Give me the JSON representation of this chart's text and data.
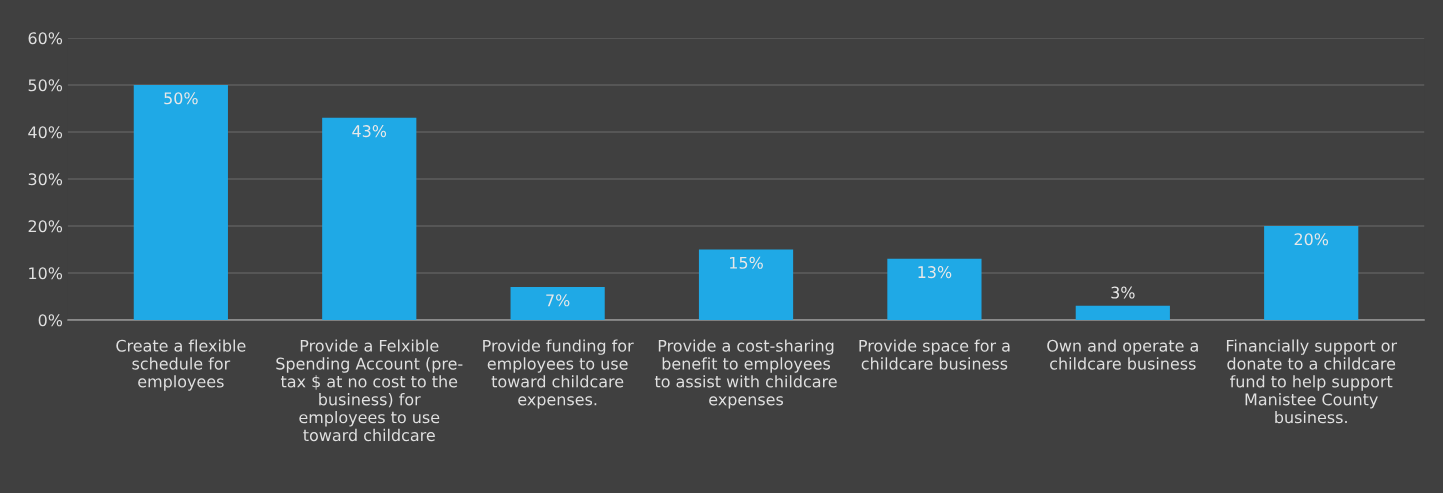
{
  "chart_data": {
    "type": "bar",
    "categories": [
      "Create a flexible\nschedule for\nemployees",
      "Provide a Felxible\nSpending Account (pre-\ntax $ at no cost to the\nbusiness) for\nemployees to use\ntoward childcare",
      "Provide funding for\nemployees to use\ntoward childcare\nexpenses.",
      "Provide a cost-sharing\nbenefit to employees\nto assist with childcare\nexpenses",
      "Provide space for a\nchildcare business",
      "Own and operate a\nchildcare business",
      "Financially support or\ndonate to a childcare\nfund to help support\nManistee County\nbusiness."
    ],
    "values": [
      50,
      43,
      7,
      15,
      13,
      3,
      20
    ],
    "color": "#1fa9e6",
    "value_labels": [
      "50%",
      "43%",
      "7%",
      "15%",
      "13%",
      "3%",
      "20%"
    ],
    "ylim": [
      0,
      60
    ],
    "yticks": [
      {
        "value": 0,
        "label": "0%"
      },
      {
        "value": 10,
        "label": "10%"
      },
      {
        "value": 20,
        "label": "20%"
      },
      {
        "value": 30,
        "label": "30%"
      },
      {
        "value": 40,
        "label": "40%"
      },
      {
        "value": 50,
        "label": "50%"
      },
      {
        "value": 60,
        "label": "60%"
      }
    ],
    "grid": "y"
  }
}
